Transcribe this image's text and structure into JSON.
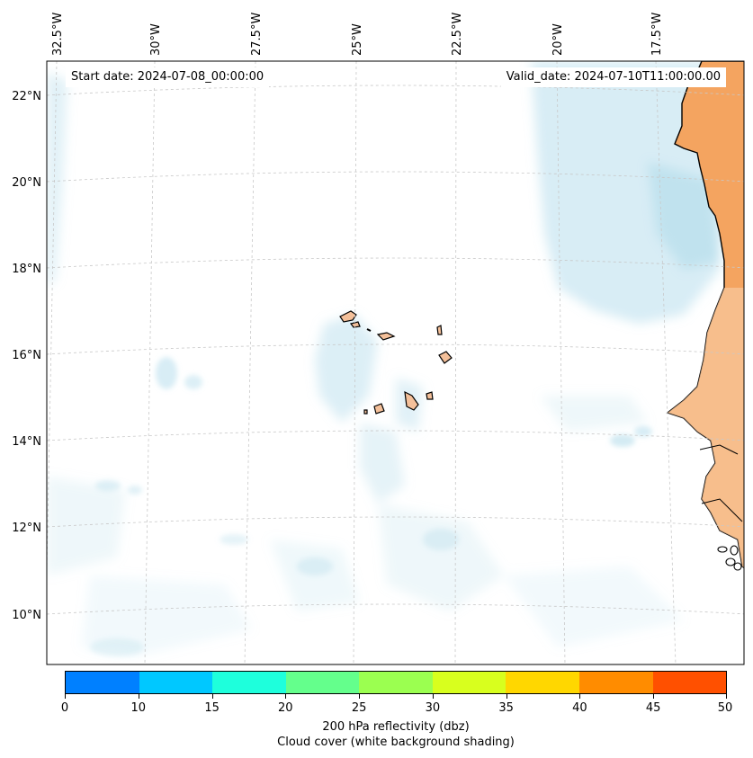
{
  "start_date": "Start date: 2024-07-08_00:00:00",
  "valid_date": "Valid_date: 2024-07-10T11:00:00.00",
  "lon_labels": [
    "32.5°W",
    "30°W",
    "27.5°W",
    "25°W",
    "22.5°W",
    "20°W",
    "17.5°W"
  ],
  "lat_labels": [
    "22°N",
    "20°N",
    "18°N",
    "16°N",
    "14°N",
    "12°N",
    "10°N"
  ],
  "colorbar": {
    "label": "200 hPa reflectivity (dbz)",
    "sublabel": "Cloud cover (white background shading)",
    "ticks": [
      "0",
      "10",
      "15",
      "20",
      "25",
      "30",
      "35",
      "40",
      "45",
      "50"
    ],
    "colors": [
      "#0080ff",
      "#00c8ff",
      "#1effdc",
      "#64ff8c",
      "#9bff50",
      "#d8ff1e",
      "#ffd700",
      "#ff8c00",
      "#ff5000"
    ]
  },
  "colors": {
    "land": "#f4a460",
    "cloud": "#a8d8e8",
    "grid": "#c8c8c8"
  }
}
